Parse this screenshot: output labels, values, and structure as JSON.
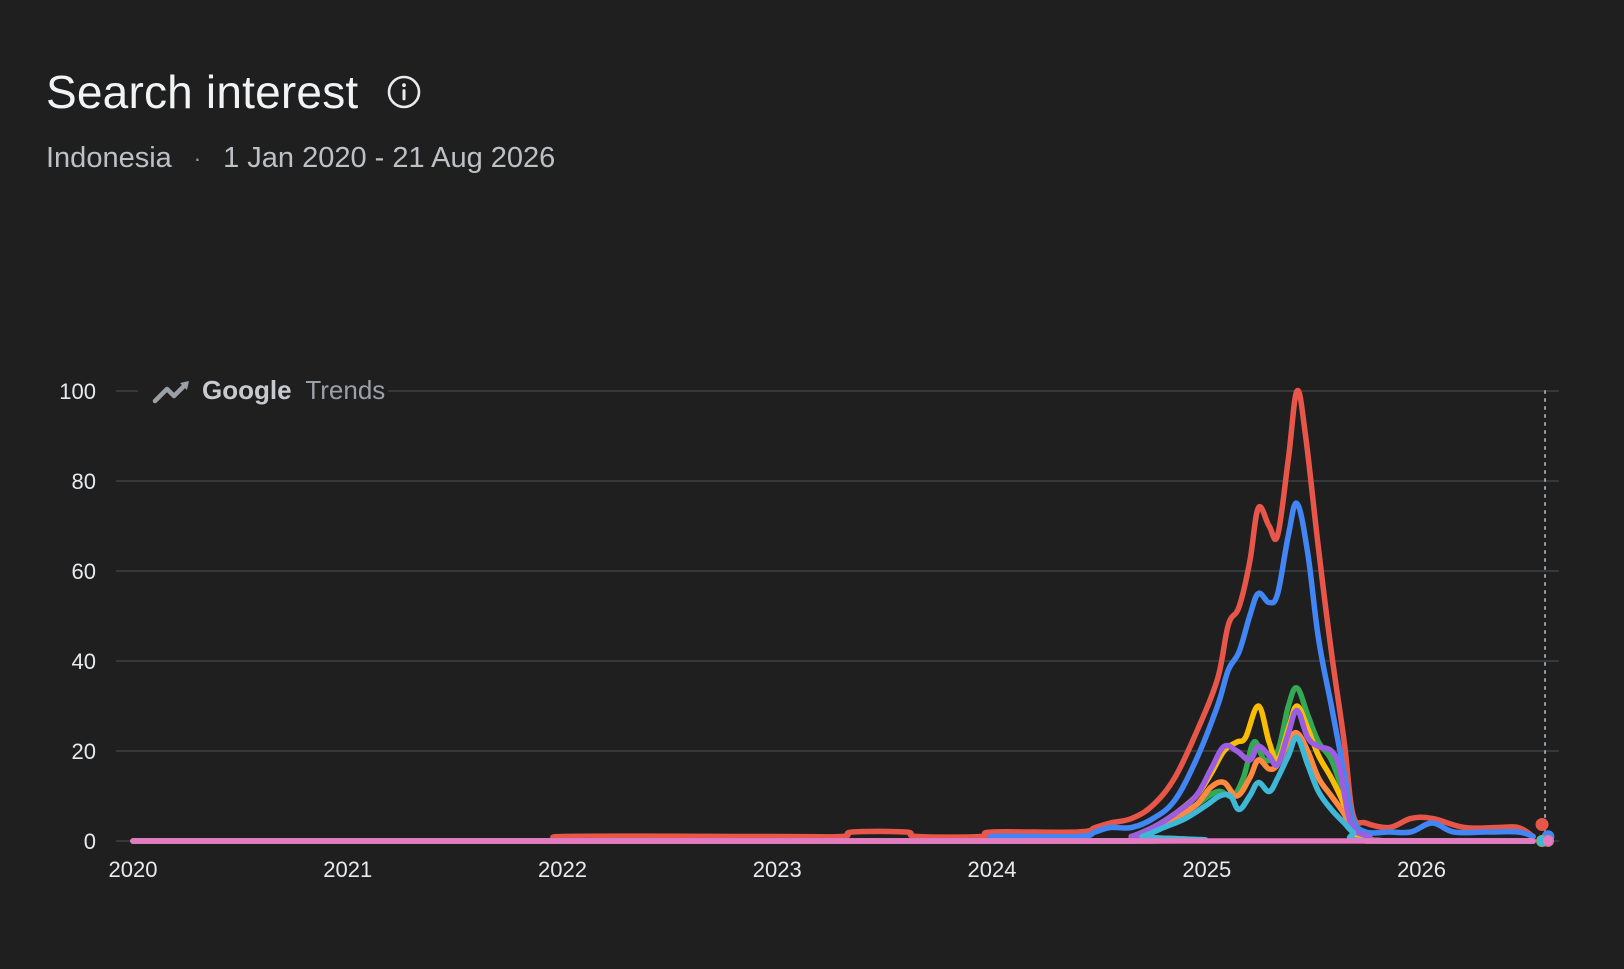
{
  "header": {
    "title": "Search interest",
    "location": "Indonesia",
    "separator": "·",
    "date_range": "1 Jan 2020 - 21 Aug 2026"
  },
  "watermark": {
    "brand": "Google",
    "product": "Trends",
    "icon": "trending-up-icon"
  },
  "chart_data": {
    "type": "line",
    "xlim": [
      2020,
      2026.64
    ],
    "ylim": [
      0,
      100
    ],
    "y_ticks": [
      0,
      20,
      40,
      60,
      80,
      100
    ],
    "x_ticks": [
      2020,
      2021,
      2022,
      2023,
      2024,
      2025,
      2026
    ],
    "x_tick_labels": [
      "2020",
      "2021",
      "2022",
      "2023",
      "2024",
      "2025",
      "2026"
    ],
    "grid": true,
    "series": [
      {
        "color": "#e8564a",
        "points": [
          [
            2020,
            0
          ],
          [
            2021.95,
            0
          ],
          [
            2022,
            1
          ],
          [
            2023,
            1
          ],
          [
            2023.3,
            1
          ],
          [
            2023.35,
            2
          ],
          [
            2023.6,
            2
          ],
          [
            2023.65,
            1
          ],
          [
            2023.95,
            1
          ],
          [
            2024,
            2
          ],
          [
            2024.4,
            2
          ],
          [
            2024.48,
            3
          ],
          [
            2024.55,
            4
          ],
          [
            2024.65,
            5
          ],
          [
            2024.75,
            8
          ],
          [
            2024.85,
            14
          ],
          [
            2024.95,
            24
          ],
          [
            2025.05,
            36
          ],
          [
            2025.1,
            48
          ],
          [
            2025.15,
            52
          ],
          [
            2025.2,
            62
          ],
          [
            2025.24,
            74
          ],
          [
            2025.29,
            70
          ],
          [
            2025.33,
            68
          ],
          [
            2025.38,
            85
          ],
          [
            2025.42,
            100
          ],
          [
            2025.46,
            90
          ],
          [
            2025.52,
            65
          ],
          [
            2025.58,
            42
          ],
          [
            2025.64,
            22
          ],
          [
            2025.68,
            6
          ],
          [
            2025.74,
            4
          ],
          [
            2025.85,
            3
          ],
          [
            2025.95,
            5
          ],
          [
            2026.05,
            5
          ],
          [
            2026.2,
            3
          ],
          [
            2026.35,
            3
          ],
          [
            2026.45,
            3
          ],
          [
            2026.52,
            1
          ]
        ]
      },
      {
        "color": "#4285f4",
        "points": [
          [
            2020,
            0
          ],
          [
            2023.95,
            0
          ],
          [
            2024,
            1
          ],
          [
            2024.4,
            1
          ],
          [
            2024.48,
            2
          ],
          [
            2024.55,
            3
          ],
          [
            2024.65,
            3
          ],
          [
            2024.75,
            5
          ],
          [
            2024.85,
            9
          ],
          [
            2024.95,
            18
          ],
          [
            2025.05,
            30
          ],
          [
            2025.1,
            38
          ],
          [
            2025.15,
            42
          ],
          [
            2025.2,
            50
          ],
          [
            2025.24,
            55
          ],
          [
            2025.29,
            53
          ],
          [
            2025.33,
            55
          ],
          [
            2025.38,
            68
          ],
          [
            2025.42,
            75
          ],
          [
            2025.47,
            64
          ],
          [
            2025.52,
            45
          ],
          [
            2025.58,
            30
          ],
          [
            2025.64,
            15
          ],
          [
            2025.68,
            5
          ],
          [
            2025.74,
            2
          ],
          [
            2025.85,
            2
          ],
          [
            2025.95,
            2
          ],
          [
            2026.05,
            4
          ],
          [
            2026.15,
            2
          ],
          [
            2026.3,
            2
          ],
          [
            2026.45,
            2
          ],
          [
            2026.52,
            1
          ]
        ]
      },
      {
        "color": "#34a853",
        "points": [
          [
            2020,
            0
          ],
          [
            2024.55,
            0
          ],
          [
            2024.65,
            1
          ],
          [
            2024.75,
            3
          ],
          [
            2024.85,
            5
          ],
          [
            2024.95,
            8
          ],
          [
            2025.05,
            11
          ],
          [
            2025.12,
            10
          ],
          [
            2025.17,
            14
          ],
          [
            2025.22,
            22
          ],
          [
            2025.27,
            18
          ],
          [
            2025.33,
            20
          ],
          [
            2025.38,
            30
          ],
          [
            2025.42,
            34
          ],
          [
            2025.47,
            28
          ],
          [
            2025.52,
            22
          ],
          [
            2025.58,
            18
          ],
          [
            2025.64,
            10
          ],
          [
            2025.68,
            3
          ],
          [
            2025.75,
            1
          ],
          [
            2025.85,
            0
          ],
          [
            2026.52,
            0
          ]
        ]
      },
      {
        "color": "#fbbc04",
        "points": [
          [
            2020,
            0
          ],
          [
            2024.55,
            0
          ],
          [
            2024.65,
            1
          ],
          [
            2024.75,
            3
          ],
          [
            2024.85,
            6
          ],
          [
            2024.95,
            10
          ],
          [
            2025.02,
            15
          ],
          [
            2025.08,
            20
          ],
          [
            2025.14,
            22
          ],
          [
            2025.18,
            23
          ],
          [
            2025.24,
            30
          ],
          [
            2025.29,
            22
          ],
          [
            2025.33,
            18
          ],
          [
            2025.38,
            25
          ],
          [
            2025.42,
            30
          ],
          [
            2025.47,
            25
          ],
          [
            2025.52,
            19
          ],
          [
            2025.58,
            14
          ],
          [
            2025.64,
            8
          ],
          [
            2025.68,
            2
          ],
          [
            2025.75,
            1
          ],
          [
            2025.85,
            0
          ],
          [
            2026.52,
            0
          ]
        ]
      },
      {
        "color": "#ff8a3d",
        "points": [
          [
            2020,
            0
          ],
          [
            2024.55,
            0
          ],
          [
            2024.65,
            1
          ],
          [
            2024.75,
            2
          ],
          [
            2024.85,
            5
          ],
          [
            2024.95,
            8
          ],
          [
            2025.02,
            12
          ],
          [
            2025.08,
            13
          ],
          [
            2025.14,
            10
          ],
          [
            2025.2,
            14
          ],
          [
            2025.24,
            18
          ],
          [
            2025.29,
            16
          ],
          [
            2025.33,
            17
          ],
          [
            2025.38,
            22
          ],
          [
            2025.42,
            24
          ],
          [
            2025.47,
            20
          ],
          [
            2025.52,
            14
          ],
          [
            2025.58,
            10
          ],
          [
            2025.64,
            6
          ],
          [
            2025.68,
            2
          ],
          [
            2025.75,
            0
          ],
          [
            2026.52,
            0
          ]
        ]
      },
      {
        "color": "#9c5de0",
        "points": [
          [
            2020,
            0
          ],
          [
            2024.55,
            0
          ],
          [
            2024.65,
            1
          ],
          [
            2024.75,
            3
          ],
          [
            2024.85,
            6
          ],
          [
            2024.95,
            10
          ],
          [
            2025.02,
            16
          ],
          [
            2025.08,
            21
          ],
          [
            2025.14,
            20
          ],
          [
            2025.2,
            18
          ],
          [
            2025.24,
            21
          ],
          [
            2025.29,
            19
          ],
          [
            2025.33,
            17
          ],
          [
            2025.38,
            24
          ],
          [
            2025.42,
            29
          ],
          [
            2025.47,
            23
          ],
          [
            2025.52,
            21
          ],
          [
            2025.58,
            20
          ],
          [
            2025.62,
            16
          ],
          [
            2025.67,
            4
          ],
          [
            2025.75,
            1
          ],
          [
            2025.85,
            0
          ],
          [
            2026.52,
            0
          ]
        ]
      },
      {
        "color": "#3fb7d6",
        "points": [
          [
            2020,
            0
          ],
          [
            2024.6,
            0
          ],
          [
            2024.7,
            1
          ],
          [
            2024.8,
            3
          ],
          [
            2024.9,
            5
          ],
          [
            2025.0,
            8
          ],
          [
            2025.06,
            10
          ],
          [
            2025.11,
            10
          ],
          [
            2025.15,
            7
          ],
          [
            2025.2,
            10
          ],
          [
            2025.24,
            13
          ],
          [
            2025.29,
            11
          ],
          [
            2025.33,
            14
          ],
          [
            2025.38,
            19
          ],
          [
            2025.42,
            23
          ],
          [
            2025.47,
            17
          ],
          [
            2025.52,
            11
          ],
          [
            2025.58,
            7
          ],
          [
            2025.64,
            4
          ],
          [
            2025.68,
            2
          ],
          [
            2025.75,
            0
          ],
          [
            2026.52,
            0
          ]
        ]
      },
      {
        "color": "#e879c0",
        "points": [
          [
            2020,
            0
          ],
          [
            2026.52,
            0
          ]
        ]
      }
    ],
    "end_marker_x": 2026.575
  }
}
